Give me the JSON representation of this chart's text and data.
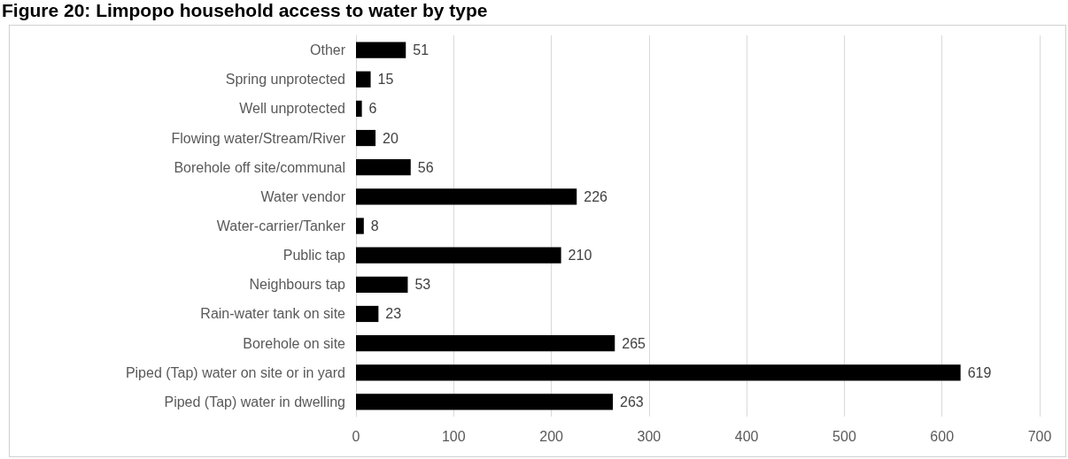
{
  "chart_data": {
    "type": "bar",
    "orientation": "horizontal",
    "title": "Figure 20: Limpopo household access to water by type",
    "categories": [
      "Other",
      "Spring unprotected",
      "Well unprotected",
      "Flowing water/Stream/River",
      "Borehole off site/communal",
      "Water vendor",
      "Water-carrier/Tanker",
      "Public tap",
      "Neighbours tap",
      "Rain-water tank on site",
      "Borehole on site",
      "Piped (Tap) water on site or in yard",
      "Piped (Tap) water in dwelling"
    ],
    "values": [
      51,
      15,
      6,
      20,
      56,
      226,
      8,
      210,
      53,
      23,
      265,
      619,
      263
    ],
    "color": "#000000",
    "xlim": [
      0,
      700
    ],
    "xticks": [
      0,
      100,
      200,
      300,
      400,
      500,
      600,
      700
    ],
    "grid": "x",
    "data_labels": true
  }
}
